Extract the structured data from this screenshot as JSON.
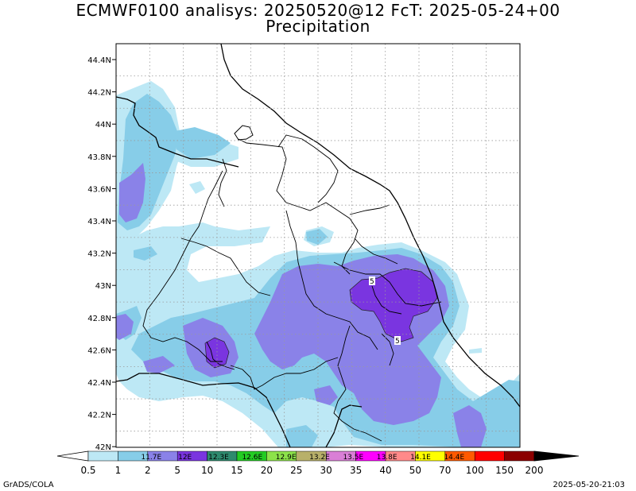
{
  "title_line1": "ECMWF0100 analisys: 20250520@12 FcT: 2025-05-24+00",
  "title_line2": "Precipitation",
  "lat_labels": [
    "44.4N",
    "44.2N",
    "44N",
    "43.8N",
    "43.6N",
    "43.4N",
    "43.2N",
    "43N",
    "42.8N",
    "42.6N",
    "42.4N",
    "42.2N",
    "42N"
  ],
  "lon_labels": [
    "11.7E",
    "12E",
    "12.3E",
    "12.6E",
    "12.9E",
    "13.2E",
    "13.5E",
    "13.8E",
    "14.1E",
    "14.4E"
  ],
  "colorbar": {
    "colors": [
      "#ffffff",
      "#bde8f5",
      "#87cde8",
      "#8a82e8",
      "#7a35e0",
      "#2e8a6e",
      "#24cc24",
      "#8de34a",
      "#b8b06a",
      "#d97fd6",
      "#ff00ff",
      "#ff8a8a",
      "#ffff00",
      "#ff5a00",
      "#ff0000",
      "#8b0000",
      "#000000"
    ],
    "values": [
      "0.5",
      "1",
      "2",
      "5",
      "10",
      "15",
      "20",
      "25",
      "30",
      "35",
      "40",
      "50",
      "70",
      "100",
      "150",
      "200"
    ]
  },
  "contour_labels": [
    "5",
    "5"
  ],
  "footer_left": "GrADS/COLA",
  "footer_right": "2025-05-20-21:03"
}
